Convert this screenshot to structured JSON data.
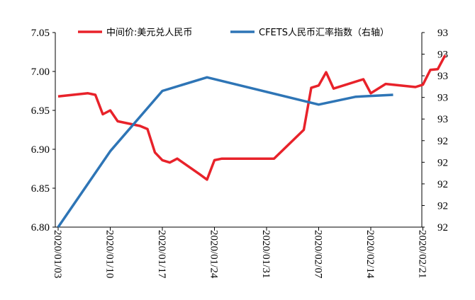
{
  "chart_data": {
    "type": "line",
    "title": "",
    "xlabel": "",
    "ylabel_left": "",
    "ylabel_right": "",
    "x_tick_labels": [
      "2020/01/03",
      "2020/01/10",
      "2020/01/17",
      "2020/01/24",
      "2020/01/31",
      "2020/02/07",
      "2020/02/14",
      "2020/02/21"
    ],
    "y_left": {
      "range": [
        6.8,
        7.05
      ],
      "ticks": [
        "6.80",
        "6.85",
        "6.90",
        "6.95",
        "7.00",
        "7.05"
      ]
    },
    "y_right": {
      "range": [
        92.0,
        93.0
      ],
      "ticks": [
        "92",
        "92",
        "92",
        "92",
        "92",
        "93",
        "93",
        "93",
        "93",
        "93"
      ]
    },
    "legend_position": "top",
    "series": [
      {
        "name": "中间价:美元兑人民币",
        "axis": "left",
        "color": "#e8222a",
        "points": [
          [
            0,
            6.968
          ],
          [
            4,
            6.972
          ],
          [
            5,
            6.97
          ],
          [
            6,
            6.945
          ],
          [
            7,
            6.95
          ],
          [
            8,
            6.936
          ],
          [
            11,
            6.93
          ],
          [
            12,
            6.926
          ],
          [
            13,
            6.896
          ],
          [
            14,
            6.886
          ],
          [
            15,
            6.883
          ],
          [
            16,
            6.888
          ],
          [
            19,
            6.868
          ],
          [
            20,
            6.861
          ],
          [
            21,
            6.886
          ],
          [
            22,
            6.888
          ],
          [
            29,
            6.888
          ],
          [
            33,
            6.925
          ],
          [
            34,
            6.979
          ],
          [
            35,
            6.982
          ],
          [
            36,
            6.999
          ],
          [
            37,
            6.978
          ],
          [
            41,
            6.99
          ],
          [
            42,
            6.972
          ],
          [
            44,
            6.984
          ],
          [
            48,
            6.98
          ],
          [
            49,
            6.983
          ],
          [
            50,
            7.002
          ],
          [
            51,
            7.003
          ],
          [
            52,
            7.021
          ]
        ]
      },
      {
        "name": "CFETS人民币汇率指数（右轴）",
        "axis": "right",
        "color": "#2e75b6",
        "points": [
          [
            0,
            92.0
          ],
          [
            7,
            92.39
          ],
          [
            14,
            92.7
          ],
          [
            20,
            92.77
          ],
          [
            35,
            92.63
          ],
          [
            40,
            92.67
          ],
          [
            45,
            92.68
          ]
        ]
      }
    ]
  }
}
